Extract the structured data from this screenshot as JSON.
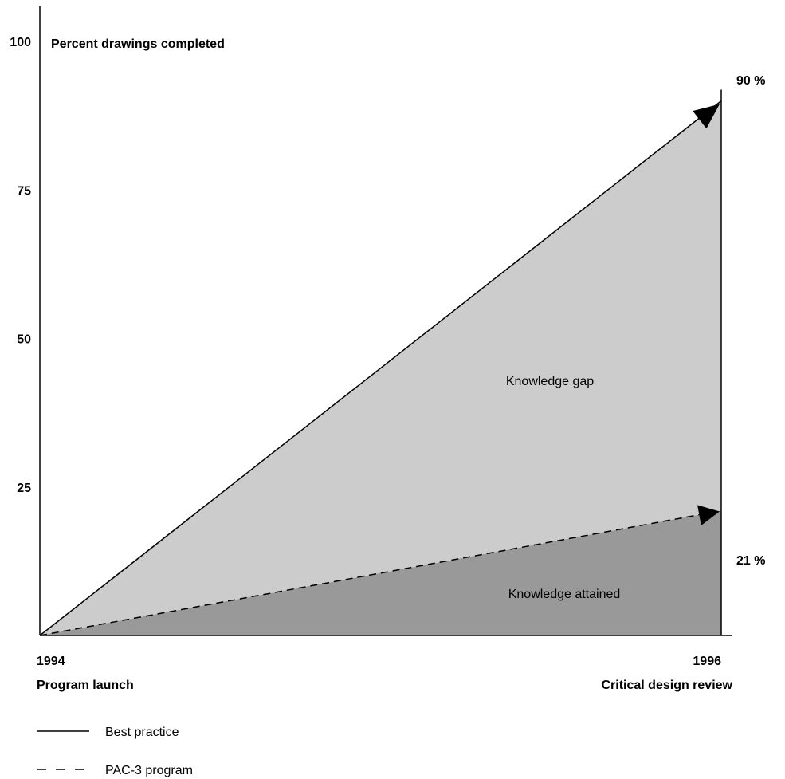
{
  "chart_data": {
    "type": "area",
    "ylabel": "Percent drawings completed",
    "ylim": [
      0,
      100
    ],
    "yticks": [
      100,
      75,
      50,
      25
    ],
    "x": [
      1994,
      1996
    ],
    "xtick_labels": [
      "1994",
      "1996"
    ],
    "xtick_sublabels": [
      "Program launch",
      "Critical design review"
    ],
    "series": [
      {
        "name": "Best practice",
        "values": [
          0,
          90
        ],
        "line_style": "solid",
        "end_label": "90 %"
      },
      {
        "name": "PAC-3 program",
        "values": [
          0,
          21
        ],
        "line_style": "dashed",
        "end_label": "21 %"
      }
    ],
    "regions": [
      {
        "label": "Knowledge gap",
        "color": "#cccccc"
      },
      {
        "label": "Knowledge attained",
        "color": "#999999"
      }
    ],
    "grid": false,
    "legend_position": "bottom-left"
  }
}
